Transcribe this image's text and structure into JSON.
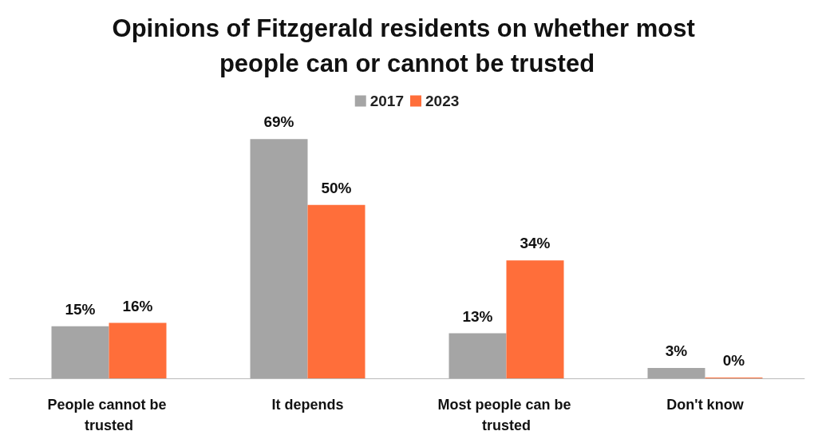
{
  "chart_data": {
    "type": "bar",
    "title": "Opinions of Fitzgerald residents on whether most people can or cannot be trusted",
    "categories": [
      "People cannot be trusted",
      "It depends",
      "Most people can be trusted",
      "Don't know"
    ],
    "series": [
      {
        "name": "2017",
        "color": "#a5a5a5",
        "values": [
          15,
          69,
          13,
          3
        ],
        "value_labels": [
          "15%",
          "69%",
          "13%",
          "3%"
        ]
      },
      {
        "name": "2023",
        "color": "#ff6e3a",
        "values": [
          16,
          50,
          34,
          0
        ],
        "value_labels": [
          "16%",
          "50%",
          "34%",
          "0%"
        ]
      }
    ],
    "legend": "top",
    "grid": false
  }
}
